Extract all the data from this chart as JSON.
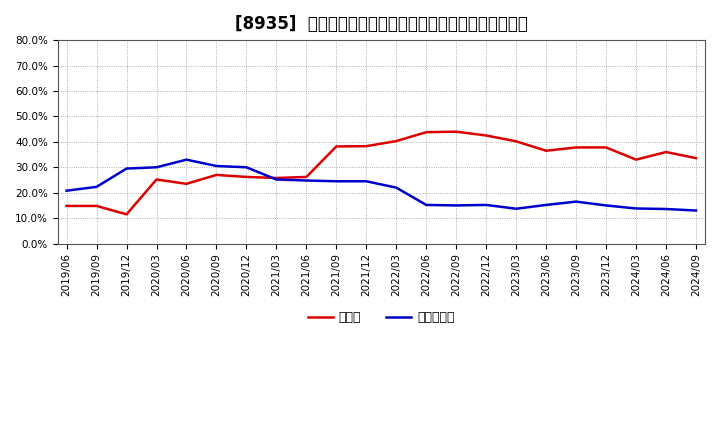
{
  "title": "[8935]  現須金、有利子負債の総資産に対する比率の推移",
  "x_labels": [
    "2019/06",
    "2019/09",
    "2019/12",
    "2020/03",
    "2020/06",
    "2020/09",
    "2020/12",
    "2021/03",
    "2021/06",
    "2021/09",
    "2021/12",
    "2022/03",
    "2022/06",
    "2022/09",
    "2022/12",
    "2023/03",
    "2023/06",
    "2023/09",
    "2023/12",
    "2024/03",
    "2024/06",
    "2024/09"
  ],
  "cash": [
    0.148,
    0.148,
    0.115,
    0.252,
    0.235,
    0.27,
    0.262,
    0.258,
    0.262,
    0.382,
    0.383,
    0.403,
    0.438,
    0.44,
    0.425,
    0.402,
    0.365,
    0.378,
    0.378,
    0.33,
    0.36,
    0.336
  ],
  "debt": [
    0.208,
    0.223,
    0.295,
    0.3,
    0.33,
    0.305,
    0.3,
    0.252,
    0.248,
    0.245,
    0.245,
    0.22,
    0.152,
    0.15,
    0.152,
    0.137,
    0.152,
    0.165,
    0.15,
    0.138,
    0.136,
    0.13
  ],
  "cash_color": "#dd0000",
  "debt_color": "#0000cc",
  "legend_cash": "現須金",
  "legend_debt": "有利子負債",
  "ylim": [
    0.0,
    0.8
  ],
  "yticks": [
    0.0,
    0.1,
    0.2,
    0.3,
    0.4,
    0.5,
    0.6,
    0.7,
    0.8
  ],
  "bg_color": "#ffffff",
  "plot_bg_color": "#ffffff",
  "grid_color": "#999999",
  "line_width": 1.8,
  "title_fontsize": 12,
  "tick_fontsize": 7.5,
  "legend_fontsize": 9
}
